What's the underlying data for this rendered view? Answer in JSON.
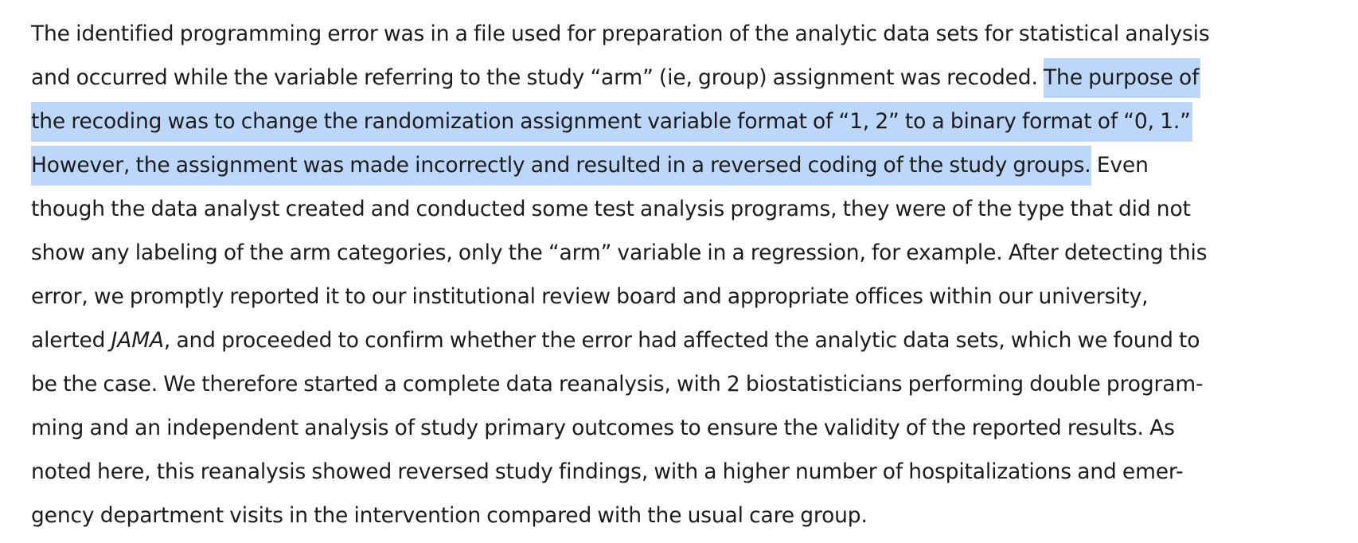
{
  "paragraph": {
    "lines": [
      {
        "text": "The identified programming error was in a file used for preparation of the analytic data sets for statistical analysis"
      },
      {
        "pre": "and occurred while the variable referring to the study “arm” (ie, group) assignment was recoded. ",
        "highlight": "The purpose of"
      },
      {
        "highlight": "the recoding was to change the randomization assignment variable format of “1, 2” to a binary format of “0, 1.”"
      },
      {
        "highlight": "However, the assignment was made incorrectly and resulted in a reversed coding of the study groups.",
        "post": " Even"
      },
      {
        "text": "though the data analyst created and conducted some test analysis programs, they were of the type that did not"
      },
      {
        "text": "show any labeling of the arm categories, only the “arm” variable in a regression, for example. After detecting this"
      },
      {
        "text": "error, we promptly reported it to our institutional review board and appropriate offices within our university,"
      },
      {
        "pre": "alerted ",
        "italic": "JAMA",
        "post": ", and proceeded to confirm whether the error had affected the analytic data sets, which we found to"
      },
      {
        "text": "be the case. We therefore started a complete data reanalysis, with 2 biostatisticians performing double program-"
      },
      {
        "text": "ming and an independent analysis of study primary outcomes to ensure the validity of the reported results. As"
      },
      {
        "text": "noted here, this reanalysis showed reversed study findings, with a higher number of hospitalizations and emer-"
      },
      {
        "text": "gency department visits in the intervention compared with the usual care group."
      }
    ]
  },
  "colors": {
    "text": "#1c1c1c",
    "selection_highlight": "#bdd7fb",
    "background": "#ffffff"
  }
}
